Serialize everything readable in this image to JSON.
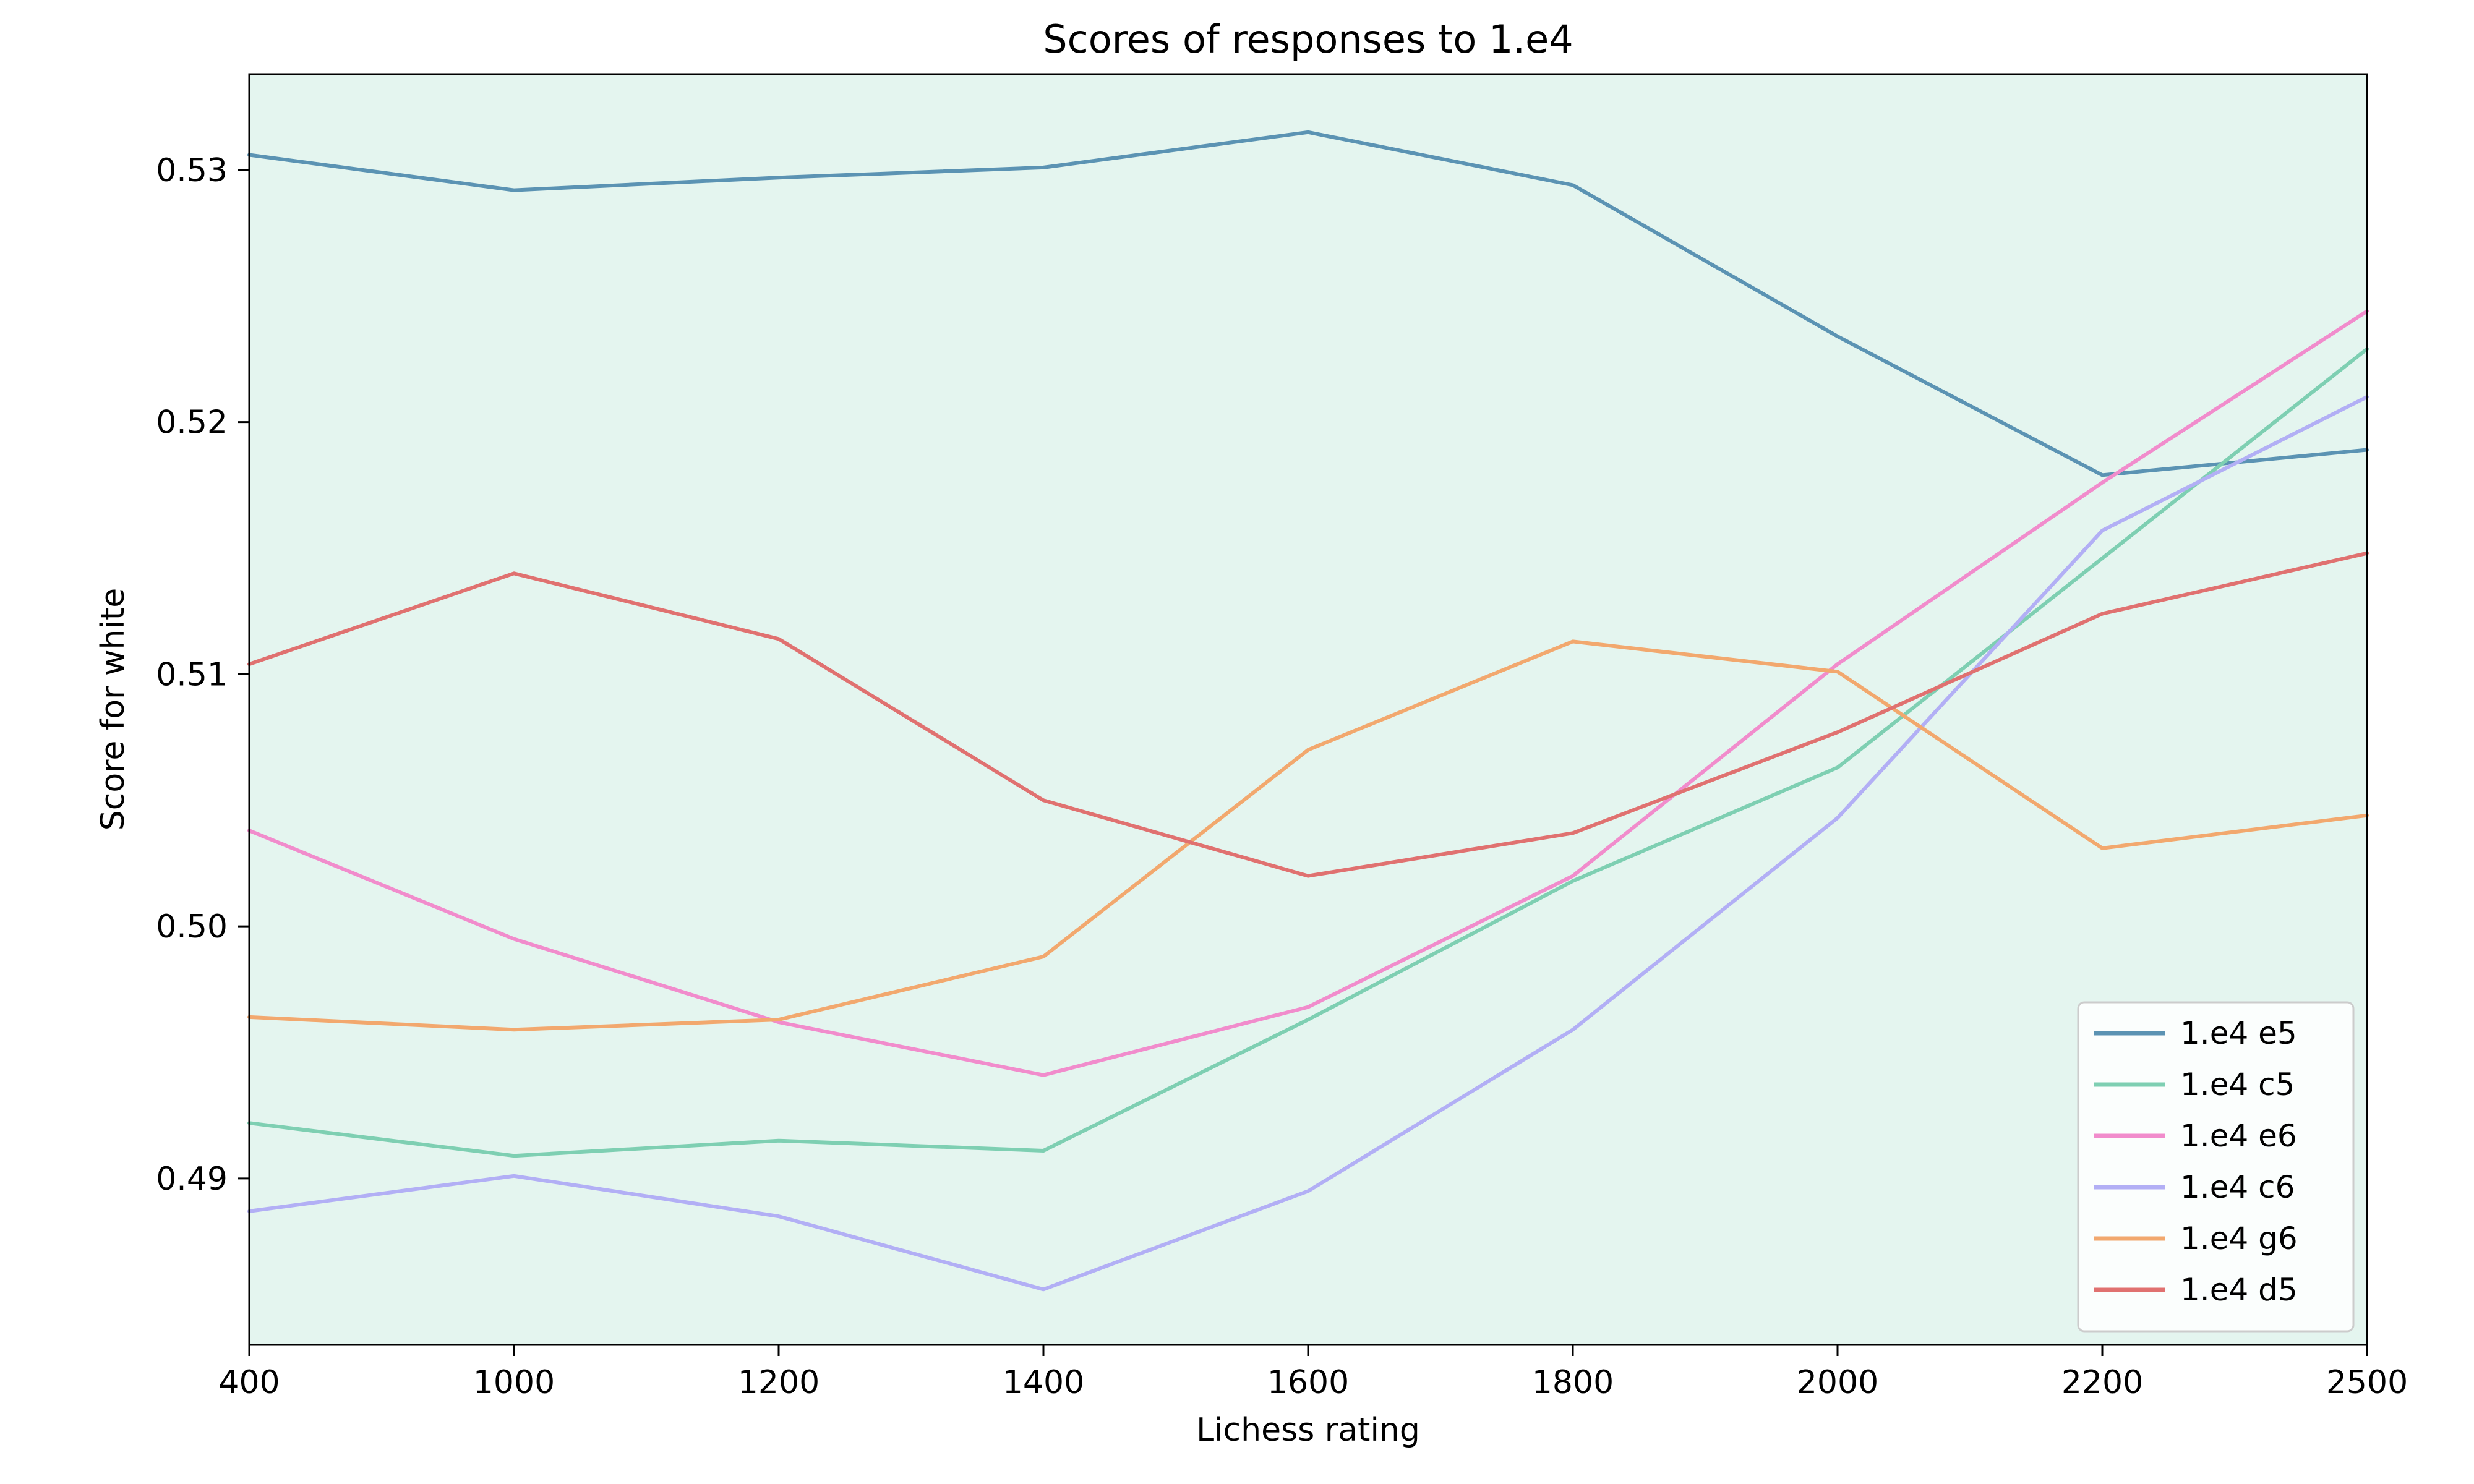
{
  "chart_data": {
    "type": "line",
    "title": "Scores of responses to 1.e4",
    "xlabel": "Lichess rating",
    "ylabel": "Score for white",
    "x": [
      400,
      1000,
      1200,
      1400,
      1600,
      1800,
      2000,
      2200,
      2500
    ],
    "x_ticks": [
      "400",
      "1000",
      "1200",
      "1400",
      "1600",
      "1800",
      "2000",
      "2200",
      "2500"
    ],
    "y_ticks": [
      0.49,
      0.5,
      0.51,
      0.52,
      0.53
    ],
    "y_tick_labels": [
      "0.49",
      "0.50",
      "0.51",
      "0.52",
      "0.53"
    ],
    "ylim": [
      0.4834,
      0.5338
    ],
    "grid": false,
    "legend_position": "lower-right",
    "plot_background": "#e4f5ef",
    "series": [
      {
        "name": "1.e4 e5",
        "color": "#5b93b3",
        "values": [
          0.5306,
          0.5292,
          0.5297,
          0.5301,
          0.5315,
          0.5294,
          0.5234,
          0.5179,
          0.5189
        ]
      },
      {
        "name": "1.e4 c5",
        "color": "#7ecfb2",
        "values": [
          0.4922,
          0.4909,
          0.4915,
          0.4911,
          0.4963,
          0.5018,
          0.5063,
          0.5146,
          0.5229
        ]
      },
      {
        "name": "1.e4 e6",
        "color": "#f18ccc",
        "values": [
          0.5038,
          0.4995,
          0.4962,
          0.4941,
          0.4968,
          0.502,
          0.5104,
          0.5176,
          0.5244
        ]
      },
      {
        "name": "1.e4 c6",
        "color": "#b2aff5",
        "values": [
          0.4887,
          0.4901,
          0.4885,
          0.4856,
          0.4895,
          0.4959,
          0.5043,
          0.5157,
          0.521
        ]
      },
      {
        "name": "1.e4 g6",
        "color": "#f2a86e",
        "values": [
          0.4964,
          0.4959,
          0.4963,
          0.4988,
          0.507,
          0.5113,
          0.5101,
          0.5031,
          0.5044
        ]
      },
      {
        "name": "1.e4 d5",
        "color": "#e07170",
        "values": [
          0.5104,
          0.514,
          0.5114,
          0.505,
          0.502,
          0.5037,
          0.5077,
          0.5124,
          0.5148
        ]
      }
    ]
  }
}
